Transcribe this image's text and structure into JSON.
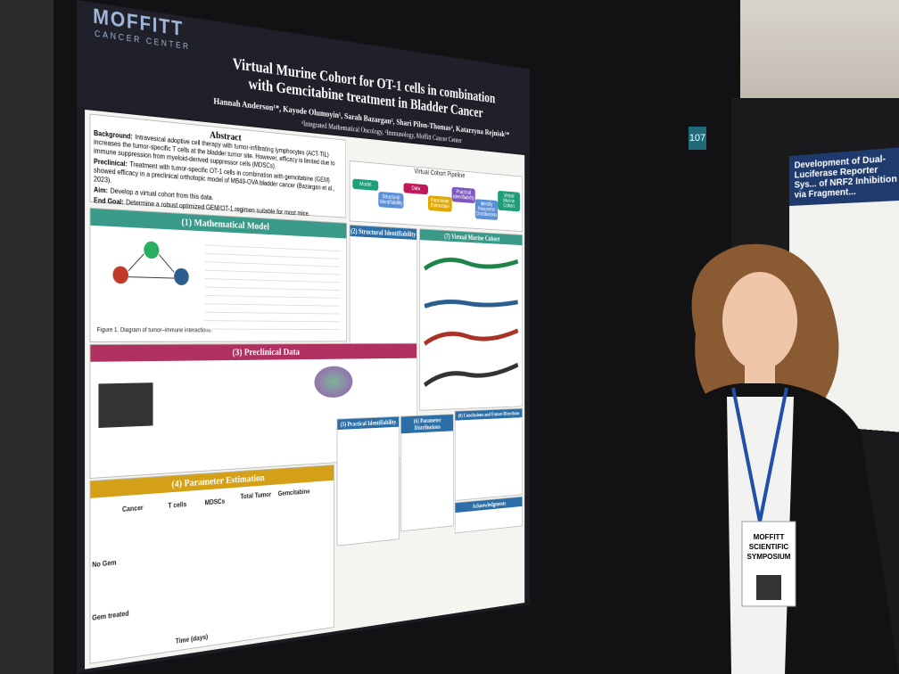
{
  "logo": {
    "name": "MOFFITT",
    "sub": "CANCER CENTER"
  },
  "poster": {
    "title": "Virtual Murine Cohort for OT-1 cells in combination with Gemcitabine treatment in Bladder Cancer",
    "authors": "Hannah Anderson¹*, Kayode Olumoyin¹, Sarah Bazargan², Shari Pilon-Thomas², Katarzyna Rejniak¹*",
    "affiliations": "¹Integrated Mathematical Oncology, ²Immunology, Moffitt Cancer Center",
    "abstract": {
      "heading": "Abstract",
      "items": [
        {
          "label": "Background:",
          "text": "Intravesical adoptive cell therapy with tumor-infiltrating lymphocytes (ACT-TIL) increases the tumor-specific T cells at the bladder tumor site. However, efficacy is limited due to immune suppression from myeloid-derived suppressor cells (MDSCs)."
        },
        {
          "label": "Preclinical:",
          "text": "Treatment with tumor-specific OT-1 cells in combination with gemcitabine (GEM) showed efficacy in a preclinical orthotopic model of MB49-OVA bladder cancer (Bazargan et al., 2023)."
        },
        {
          "label": "Aim:",
          "text": "Develop a virtual cohort from this data."
        },
        {
          "label": "End Goal:",
          "text": "Determine a robust optimized GEM/OT-1 regimen suitable for most mice."
        }
      ]
    },
    "pipeline": {
      "heading": "Virtual Cohort Pipeline",
      "steps": [
        "Model",
        "Structural Identifiability",
        "Data",
        "Parameter Estimation",
        "Practical Identifiability",
        "Identify Parameter Distributions",
        "Virtual Murine Cohort"
      ]
    },
    "sections": [
      "(1) Mathematical Model",
      "(2) Structural Identifiability",
      "(3) Preclinical Data",
      "(4) Parameter Estimation",
      "(5) Practical Identifiability",
      "(6) Parameter Distributions",
      "(7) Virtual Murine Cohort",
      "(8) Conclusions and Future Directions",
      "Acknowledgments"
    ],
    "figure1": "Figure 1. Diagram of tumor–immune interactions.",
    "plot_labels": [
      "Cancer",
      "T cells",
      "MDSCs",
      "Total Tumor",
      "Gemcitabine",
      "Time (days)",
      "No Gem",
      "Gem treated"
    ]
  },
  "booth_number": "107",
  "neighbor_poster_title": "Development of Dual-Luciferase Reporter Sys... of NRF2 Inhibition via Fragment...",
  "badge": {
    "line1": "MOFFITT",
    "line2": "SCIENTIFIC",
    "line3": "SYMPOSIUM"
  }
}
